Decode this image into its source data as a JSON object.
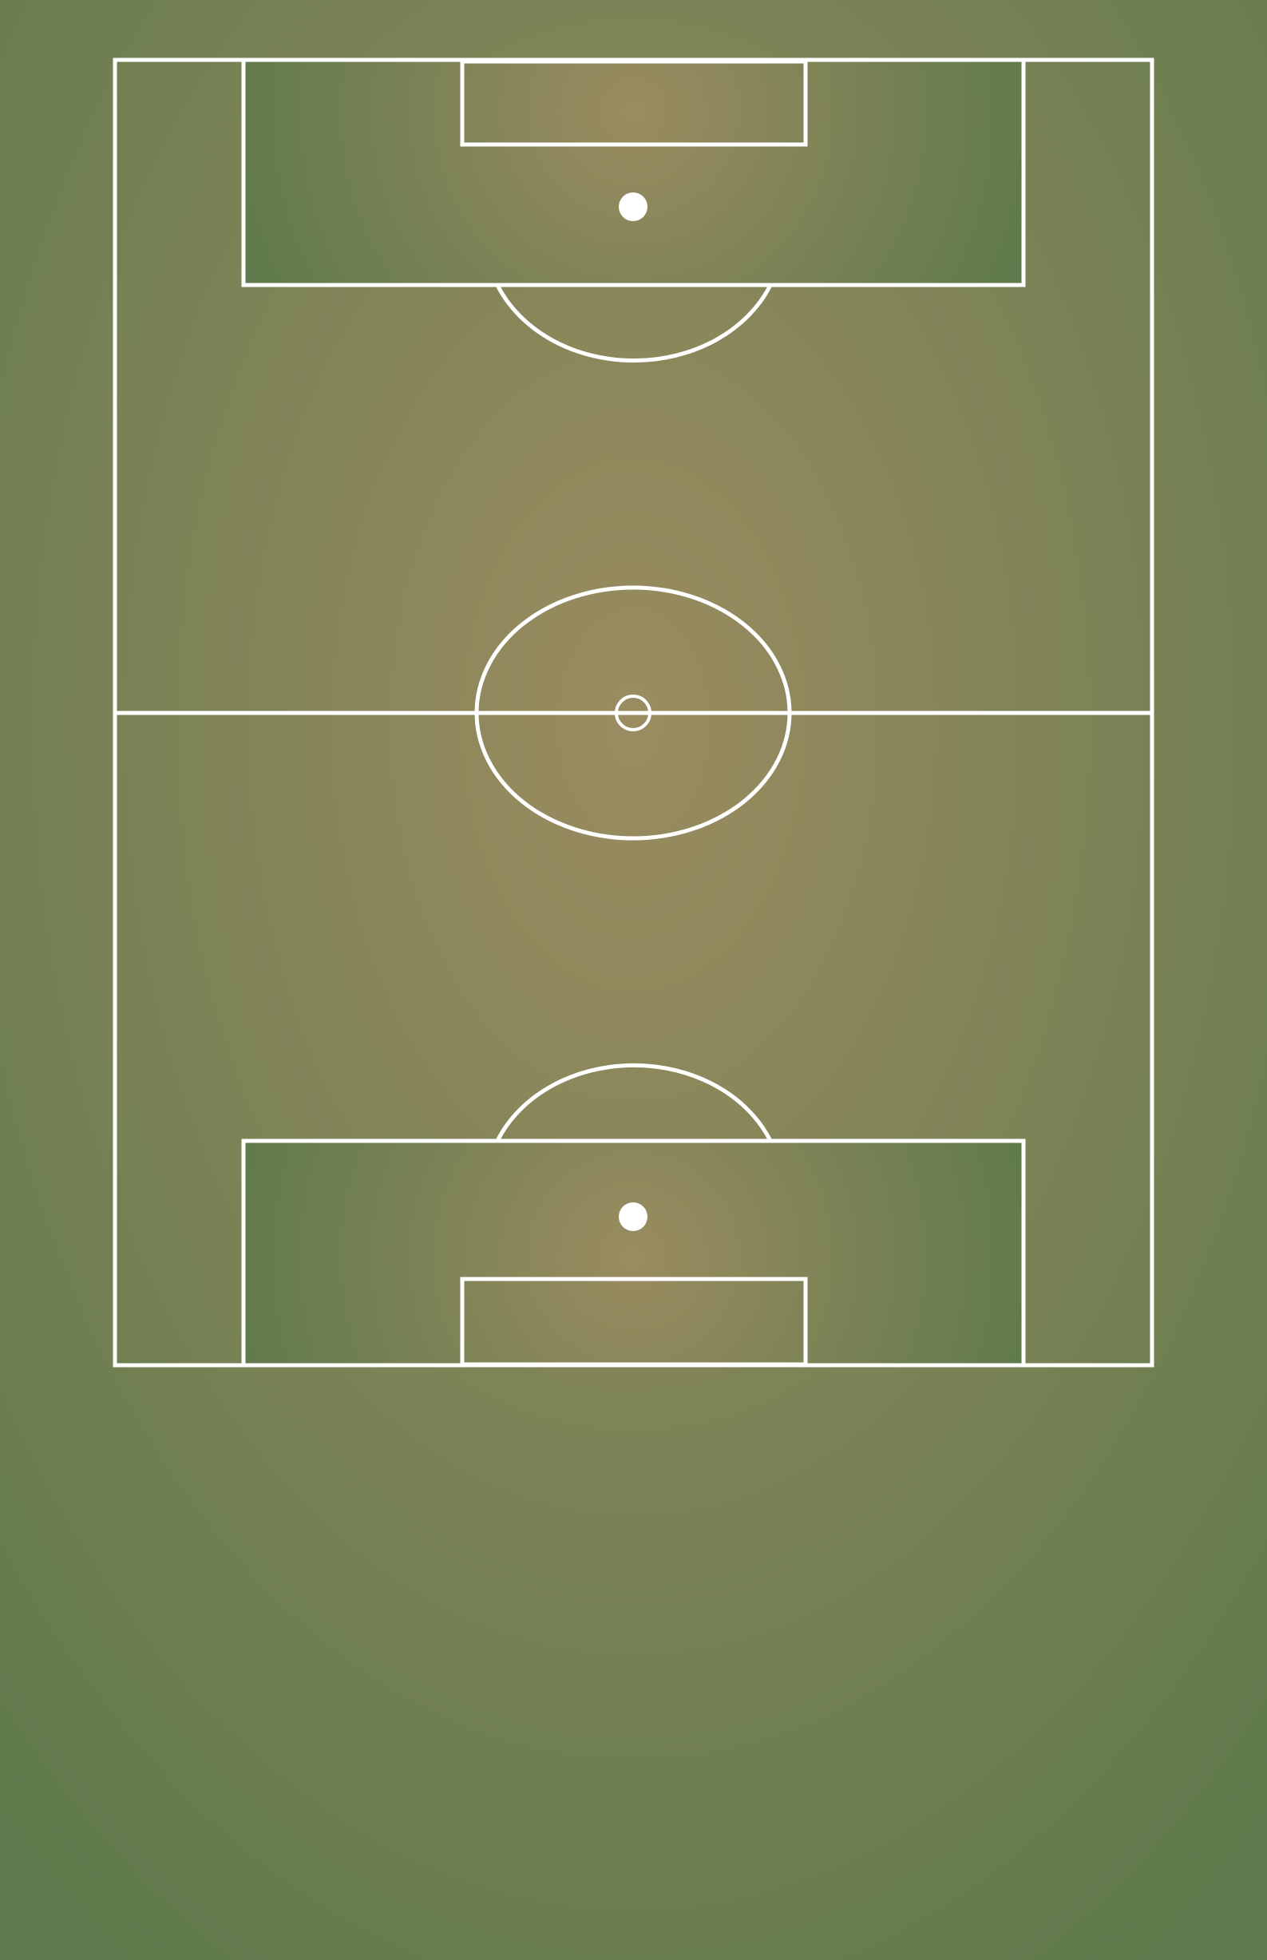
{
  "pitch": {
    "orientation": "vertical",
    "colors": {
      "turf_center": "#9a8c60",
      "turf_edge": "#5f7a4c",
      "box_center": "#9a8c60",
      "box_edge": "#5f7a4c",
      "lines": "#ffffff"
    },
    "markings": [
      "outer-boundary",
      "halfway-line",
      "center-circle",
      "center-spot",
      "top-penalty-area",
      "top-goal-area",
      "top-penalty-spot",
      "top-penalty-arc",
      "bottom-penalty-area",
      "bottom-goal-area",
      "bottom-penalty-spot",
      "bottom-penalty-arc"
    ]
  }
}
